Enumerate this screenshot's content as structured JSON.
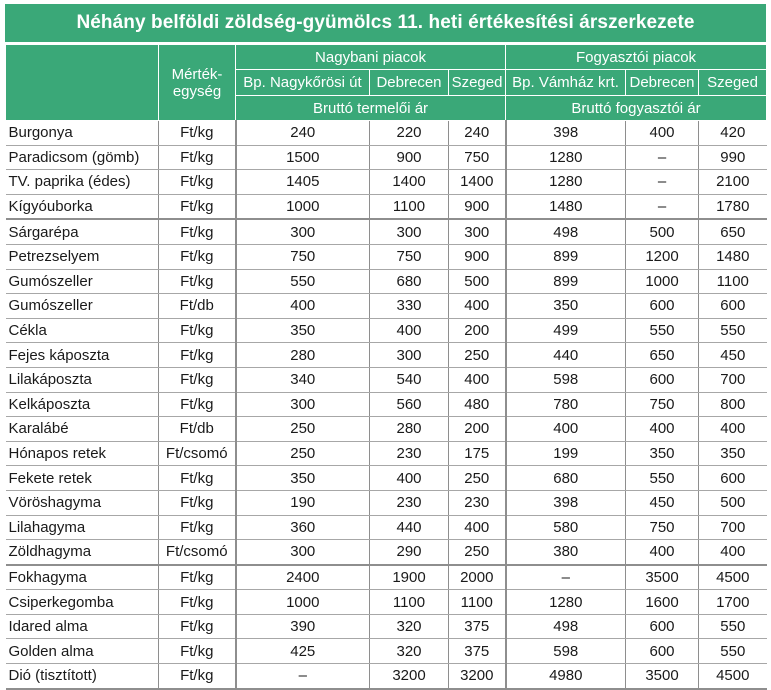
{
  "title": "Néhány belföldi zöldség-gyümölcs 11. heti értékesítési árszerkezete",
  "header": {
    "unit": "Mérték-egység",
    "wholesale_group": "Nagybani piacok",
    "retail_group": "Fogyasztói piacok",
    "wholesale_markets": [
      "Bp. Nagykőrösi út",
      "Debrecen",
      "Szeged"
    ],
    "retail_markets": [
      "Bp. Vámház krt.",
      "Debrecen",
      "Szeged"
    ],
    "wholesale_price_type": "Bruttó termelői ár",
    "retail_price_type": "Bruttó fogyasztói ár"
  },
  "rows": [
    {
      "name": "Burgonya",
      "unit": "Ft/kg",
      "w": [
        "240",
        "220",
        "240"
      ],
      "r": [
        "398",
        "400",
        "420"
      ]
    },
    {
      "name": "Paradicsom (gömb)",
      "unit": "Ft/kg",
      "w": [
        "1500",
        "900",
        "750"
      ],
      "r": [
        "1280",
        "–",
        "990"
      ]
    },
    {
      "name": "TV. paprika (édes)",
      "unit": "Ft/kg",
      "w": [
        "1405",
        "1400",
        "1400"
      ],
      "r": [
        "1280",
        "–",
        "2100"
      ]
    },
    {
      "name": "Kígyóuborka",
      "unit": "Ft/kg",
      "w": [
        "1000",
        "1100",
        "900"
      ],
      "r": [
        "1480",
        "–",
        "1780"
      ]
    },
    {
      "name": "Sárgarépa",
      "unit": "Ft/kg",
      "w": [
        "300",
        "300",
        "300"
      ],
      "r": [
        "498",
        "500",
        "650"
      ]
    },
    {
      "name": "Petrezselyem",
      "unit": "Ft/kg",
      "w": [
        "750",
        "750",
        "900"
      ],
      "r": [
        "899",
        "1200",
        "1480"
      ]
    },
    {
      "name": "Gumószeller",
      "unit": "Ft/kg",
      "w": [
        "550",
        "680",
        "500"
      ],
      "r": [
        "899",
        "1000",
        "1100"
      ]
    },
    {
      "name": "Gumószeller",
      "unit": "Ft/db",
      "w": [
        "400",
        "330",
        "400"
      ],
      "r": [
        "350",
        "600",
        "600"
      ]
    },
    {
      "name": "Cékla",
      "unit": "Ft/kg",
      "w": [
        "350",
        "400",
        "200"
      ],
      "r": [
        "499",
        "550",
        "550"
      ]
    },
    {
      "name": "Fejes káposzta",
      "unit": "Ft/kg",
      "w": [
        "280",
        "300",
        "250"
      ],
      "r": [
        "440",
        "650",
        "450"
      ]
    },
    {
      "name": "Lilakáposzta",
      "unit": "Ft/kg",
      "w": [
        "340",
        "540",
        "400"
      ],
      "r": [
        "598",
        "600",
        "700"
      ]
    },
    {
      "name": "Kelkáposzta",
      "unit": "Ft/kg",
      "w": [
        "300",
        "560",
        "480"
      ],
      "r": [
        "780",
        "750",
        "800"
      ]
    },
    {
      "name": "Karalábé",
      "unit": "Ft/db",
      "w": [
        "250",
        "280",
        "200"
      ],
      "r": [
        "400",
        "400",
        "400"
      ]
    },
    {
      "name": "Hónapos retek",
      "unit": "Ft/csomó",
      "w": [
        "250",
        "230",
        "175"
      ],
      "r": [
        "199",
        "350",
        "350"
      ]
    },
    {
      "name": "Fekete retek",
      "unit": "Ft/kg",
      "w": [
        "350",
        "400",
        "250"
      ],
      "r": [
        "680",
        "550",
        "600"
      ]
    },
    {
      "name": "Vöröshagyma",
      "unit": "Ft/kg",
      "w": [
        "190",
        "230",
        "230"
      ],
      "r": [
        "398",
        "450",
        "500"
      ]
    },
    {
      "name": "Lilahagyma",
      "unit": "Ft/kg",
      "w": [
        "360",
        "440",
        "400"
      ],
      "r": [
        "580",
        "750",
        "700"
      ]
    },
    {
      "name": "Zöldhagyma",
      "unit": "Ft/csomó",
      "w": [
        "300",
        "290",
        "250"
      ],
      "r": [
        "380",
        "400",
        "400"
      ]
    },
    {
      "name": "Fokhagyma",
      "unit": "Ft/kg",
      "w": [
        "2400",
        "1900",
        "2000"
      ],
      "r": [
        "–",
        "3500",
        "4500"
      ]
    },
    {
      "name": "Csiperkegomba",
      "unit": "Ft/kg",
      "w": [
        "1000",
        "1100",
        "1100"
      ],
      "r": [
        "1280",
        "1600",
        "1700"
      ]
    },
    {
      "name": "Idared alma",
      "unit": "Ft/kg",
      "w": [
        "390",
        "320",
        "375"
      ],
      "r": [
        "498",
        "600",
        "550"
      ]
    },
    {
      "name": "Golden alma",
      "unit": "Ft/kg",
      "w": [
        "425",
        "320",
        "375"
      ],
      "r": [
        "598",
        "600",
        "550"
      ]
    },
    {
      "name": "Dió (tisztított)",
      "unit": "Ft/kg",
      "w": [
        "–",
        "3200",
        "3200"
      ],
      "r": [
        "4980",
        "3500",
        "4500"
      ]
    }
  ],
  "colors": {
    "header_bg": "#3aa878",
    "header_text": "#ffffff",
    "rule": "#8e8e8e"
  }
}
